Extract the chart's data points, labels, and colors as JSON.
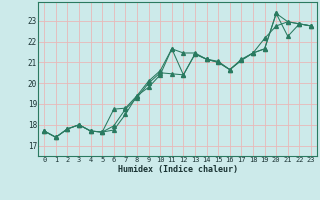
{
  "xlabel": "Humidex (Indice chaleur)",
  "x_ticks": [
    0,
    1,
    2,
    3,
    4,
    5,
    6,
    7,
    8,
    9,
    10,
    11,
    12,
    13,
    14,
    15,
    16,
    17,
    18,
    19,
    20,
    21,
    22,
    23
  ],
  "y_ticks": [
    17,
    18,
    19,
    20,
    21,
    22,
    23
  ],
  "xlim": [
    -0.5,
    23.5
  ],
  "ylim": [
    16.5,
    23.9
  ],
  "bg_color": "#cceaea",
  "grid_color": "#e8b8b8",
  "line_color": "#2a7a60",
  "line1_y": [
    17.7,
    17.4,
    17.8,
    18.0,
    17.7,
    17.65,
    17.75,
    18.5,
    19.4,
    20.1,
    20.6,
    21.65,
    21.45,
    21.45,
    21.15,
    21.05,
    20.65,
    21.15,
    21.45,
    21.65,
    23.35,
    22.95,
    22.85,
    22.75
  ],
  "line2_y": [
    17.7,
    17.4,
    17.8,
    18.0,
    17.7,
    17.65,
    18.75,
    18.8,
    19.4,
    19.8,
    20.4,
    21.65,
    20.4,
    21.4,
    21.15,
    21.0,
    20.65,
    21.1,
    21.45,
    21.65,
    23.35,
    22.25,
    22.85,
    22.75
  ],
  "line3_y": [
    17.7,
    17.4,
    17.8,
    18.0,
    17.7,
    17.65,
    17.95,
    18.75,
    19.3,
    20.0,
    20.5,
    20.45,
    20.4,
    21.4,
    21.15,
    21.0,
    20.65,
    21.1,
    21.45,
    22.15,
    22.75,
    22.95,
    22.85,
    22.75
  ]
}
